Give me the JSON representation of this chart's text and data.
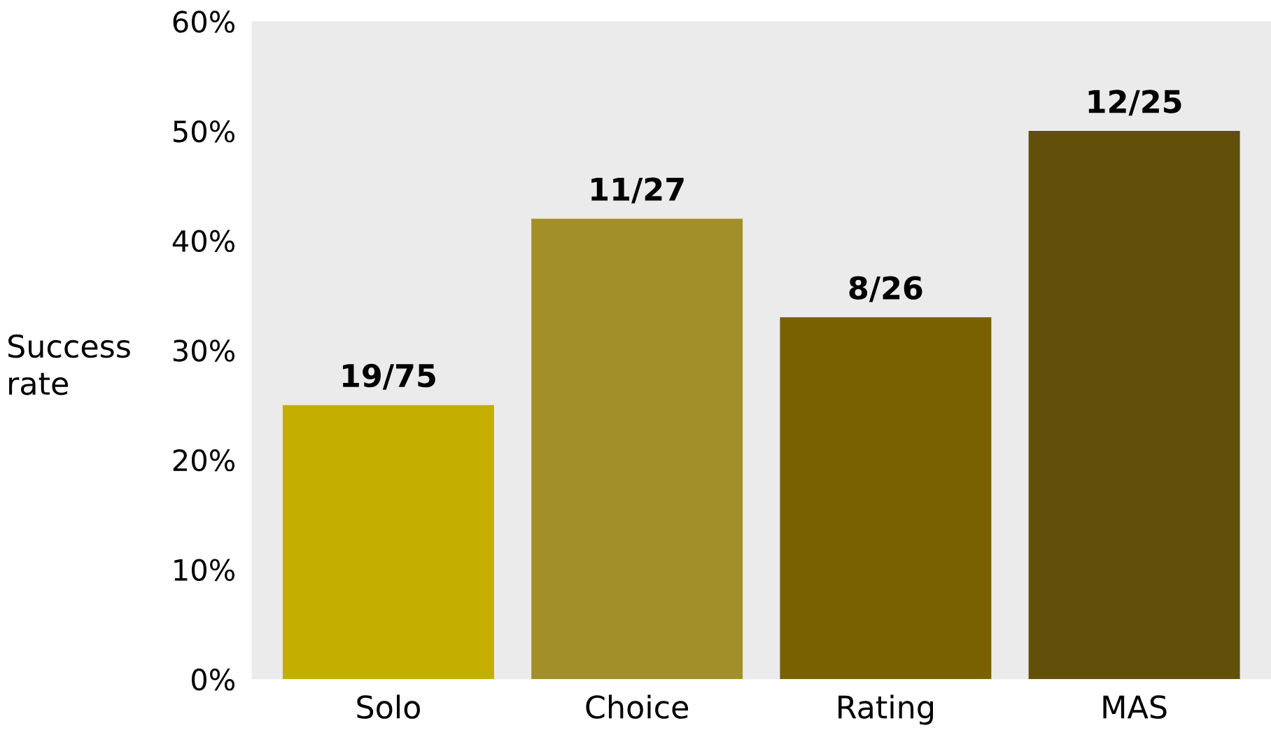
{
  "chart_data": {
    "type": "bar",
    "ylabel": "Success rate",
    "categories": [
      "Solo",
      "Choice",
      "Rating",
      "MAS"
    ],
    "values": [
      25,
      42,
      33,
      50
    ],
    "colors": [
      "#c4ae00",
      "#a38f2a",
      "#7a6100",
      "#62500a"
    ],
    "value_labels": [
      "19/75",
      "11/27",
      "8/26",
      "12/25"
    ],
    "ylim": [
      0,
      60
    ],
    "yticks": [
      {
        "value": 0,
        "label": "0%"
      },
      {
        "value": 10,
        "label": "10%"
      },
      {
        "value": 20,
        "label": "20%"
      },
      {
        "value": 30,
        "label": "30%"
      },
      {
        "value": 40,
        "label": "40%"
      },
      {
        "value": 50,
        "label": "50%"
      },
      {
        "value": 60,
        "label": "60%"
      }
    ],
    "grid": false,
    "legend": false
  }
}
